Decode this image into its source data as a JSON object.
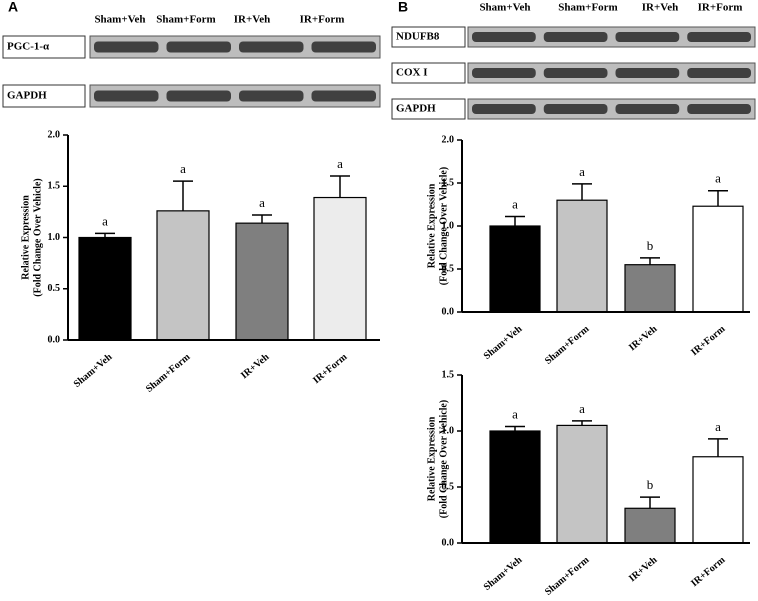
{
  "chart_data": [
    {
      "type": "bar",
      "panel": "A",
      "blot_lanes": [
        "Sham+Veh",
        "Sham+Form",
        "IR+Veh",
        "IR+Form"
      ],
      "blot_rows": [
        "PGC-1-α",
        "GAPDH"
      ],
      "y_label": [
        "Relative Expression",
        "(Fold Change Over Vehicle)"
      ],
      "categories": [
        "Sham+Veh",
        "Sham+Form",
        "IR+Veh",
        "IR+Form"
      ],
      "values": [
        1.0,
        1.26,
        1.14,
        1.39
      ],
      "errors": [
        0.04,
        0.29,
        0.08,
        0.21
      ],
      "annotations": [
        "a",
        "a",
        "a",
        "a"
      ],
      "colors": [
        "#000000",
        "#c4c4c4",
        "#7f7f7f",
        "#ececec"
      ],
      "ylim": [
        0,
        2.0
      ],
      "yticks": [
        {
          "value": 0,
          "label": "0.0"
        },
        {
          "value": 0.5,
          "label": "0.5"
        },
        {
          "value": 1.0,
          "label": "1.0"
        },
        {
          "value": 1.5,
          "label": "1.5"
        },
        {
          "value": 2.0,
          "label": "2.0"
        }
      ]
    },
    {
      "type": "bar",
      "panel": "B",
      "blot_lanes": [
        "Sham+Veh",
        "Sham+Form",
        "IR+Veh",
        "IR+Form"
      ],
      "blot_rows": [
        "NDUFB8",
        "COX I",
        "GAPDH"
      ],
      "y_label": [
        "Relative Expression",
        "(Fold Change Over Vehicle)"
      ],
      "categories": [
        "Sham+Veh",
        "Sham+Form",
        "IR+Veh",
        "IR+Form"
      ],
      "values": [
        1.0,
        1.3,
        0.55,
        1.23
      ],
      "errors": [
        0.11,
        0.19,
        0.08,
        0.18
      ],
      "annotations": [
        "a",
        "a",
        "b",
        "a"
      ],
      "colors": [
        "#000000",
        "#c4c4c4",
        "#7f7f7f",
        "#ffffff"
      ],
      "ylim": [
        0,
        2.0
      ],
      "yticks": [
        {
          "value": 0,
          "label": "0.0"
        },
        {
          "value": 0.5,
          "label": "0.5"
        },
        {
          "value": 1.0,
          "label": "1.0"
        },
        {
          "value": 1.5,
          "label": "1.5"
        },
        {
          "value": 2.0,
          "label": "2.0"
        }
      ]
    },
    {
      "type": "bar",
      "y_label": [
        "Relative Expression",
        "(Fold Change Over Vehicle)"
      ],
      "categories": [
        "Sham+Veh",
        "Sham+Form",
        "IR+Veh",
        "IR+Form"
      ],
      "values": [
        1.0,
        1.05,
        0.31,
        0.77
      ],
      "errors": [
        0.04,
        0.04,
        0.1,
        0.16
      ],
      "annotations": [
        "a",
        "a",
        "b",
        "a"
      ],
      "colors": [
        "#000000",
        "#c4c4c4",
        "#7f7f7f",
        "#ffffff"
      ],
      "ylim": [
        0,
        1.5
      ],
      "yticks": [
        {
          "value": 0,
          "label": "0.0"
        },
        {
          "value": 0.5,
          "label": "0.5"
        },
        {
          "value": 1.0,
          "label": "1.0"
        },
        {
          "value": 1.5,
          "label": "1.5"
        }
      ]
    }
  ]
}
